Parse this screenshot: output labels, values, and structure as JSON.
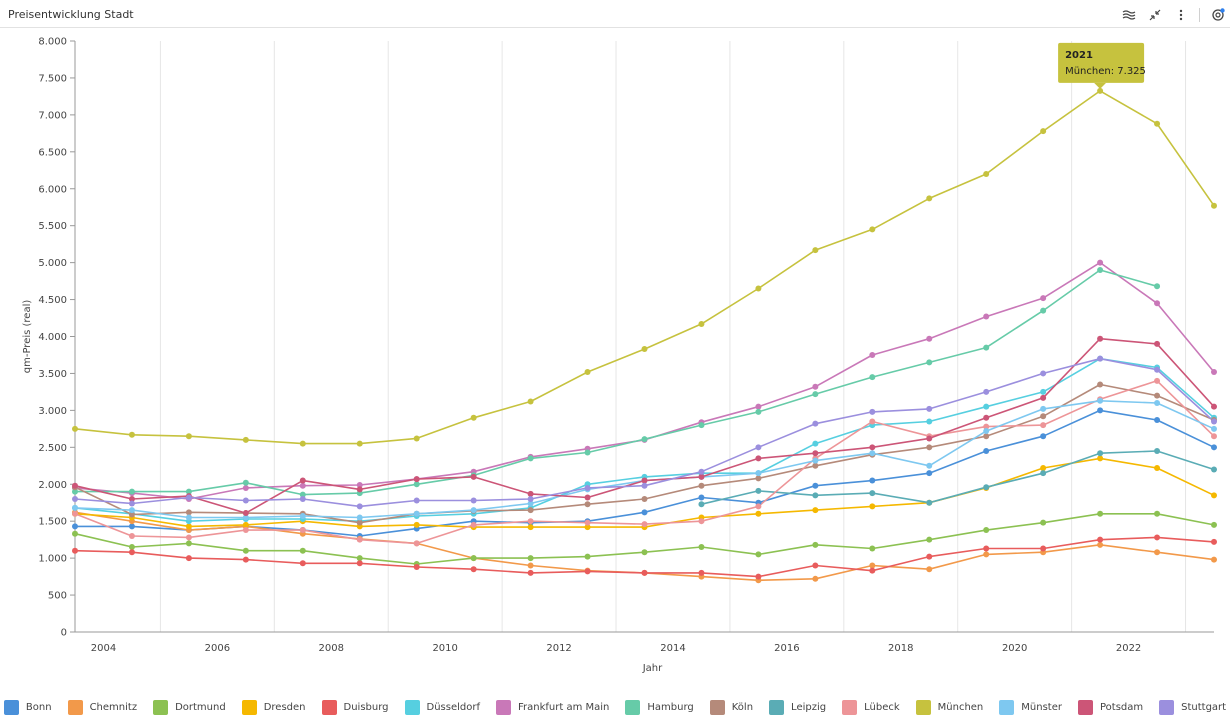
{
  "header": {
    "title": "Preisentwicklung Stadt"
  },
  "toolbar": [
    {
      "name": "chart-type-icon",
      "glyph": "≋"
    },
    {
      "name": "collapse-icon",
      "glyph": "⤡"
    },
    {
      "name": "more-menu-icon",
      "glyph": "⋮"
    },
    {
      "name": "settings-icon",
      "glyph": "◔"
    }
  ],
  "tooltip": {
    "year": "2021",
    "text": "München: 7.325",
    "color": "#c6c23e"
  },
  "chart_data": {
    "type": "line",
    "xlabel": "Jahr",
    "ylabel": "qm-Preis (real)",
    "xlim": [
      2003.5,
      2023.5
    ],
    "ylim": [
      0,
      8000
    ],
    "x_ticks": [
      {
        "value": 2004,
        "label": "2004"
      },
      {
        "value": 2006,
        "label": "2006"
      },
      {
        "value": 2008,
        "label": "2008"
      },
      {
        "value": 2010,
        "label": "2010"
      },
      {
        "value": 2012,
        "label": "2012"
      },
      {
        "value": 2014,
        "label": "2014"
      },
      {
        "value": 2016,
        "label": "2016"
      },
      {
        "value": 2018,
        "label": "2018"
      },
      {
        "value": 2020,
        "label": "2020"
      },
      {
        "value": 2022,
        "label": "2022"
      }
    ],
    "y_ticks": [
      {
        "value": 0,
        "label": "0"
      },
      {
        "value": 500,
        "label": "500"
      },
      {
        "value": 1000,
        "label": "1.000"
      },
      {
        "value": 1500,
        "label": "1.500"
      },
      {
        "value": 2000,
        "label": "2.000"
      },
      {
        "value": 2500,
        "label": "2.500"
      },
      {
        "value": 3000,
        "label": "3.000"
      },
      {
        "value": 3500,
        "label": "3.500"
      },
      {
        "value": 4000,
        "label": "4.000"
      },
      {
        "value": 4500,
        "label": "4.500"
      },
      {
        "value": 5000,
        "label": "5.000"
      },
      {
        "value": 5500,
        "label": "5.500"
      },
      {
        "value": 6000,
        "label": "6.000"
      },
      {
        "value": 6500,
        "label": "6.500"
      },
      {
        "value": 7000,
        "label": "7.000"
      },
      {
        "value": 7500,
        "label": "7.500"
      },
      {
        "value": 8000,
        "label": "8.000"
      }
    ],
    "x": [
      2003.5,
      2004.5,
      2005.5,
      2006.5,
      2007.5,
      2008.5,
      2009.5,
      2010.5,
      2011.5,
      2012.5,
      2013.5,
      2014.5,
      2015.5,
      2016.5,
      2017.5,
      2018.5,
      2019.5,
      2020.5,
      2021.5,
      2022.5,
      2023.5
    ],
    "legend_position": "bottom",
    "series": [
      {
        "name": "Bonn",
        "color": "#4a90d9",
        "values": [
          1430,
          1430,
          1380,
          1430,
          1380,
          1300,
          1400,
          1500,
          1480,
          1500,
          1620,
          1820,
          1750,
          1980,
          2050,
          2150,
          2450,
          2650,
          3000,
          2870,
          2500
        ]
      },
      {
        "name": "Chemnitz",
        "color": "#f2994a",
        "values": [
          1620,
          1500,
          1380,
          1430,
          1330,
          1260,
          1200,
          1000,
          900,
          830,
          800,
          750,
          700,
          720,
          900,
          850,
          1050,
          1080,
          1180,
          1080,
          980
        ]
      },
      {
        "name": "Dortmund",
        "color": "#8cc152",
        "values": [
          1330,
          1150,
          1200,
          1100,
          1100,
          1000,
          920,
          1000,
          1000,
          1020,
          1080,
          1150,
          1050,
          1180,
          1130,
          1250,
          1380,
          1480,
          1600,
          1600,
          1450
        ]
      },
      {
        "name": "Dresden",
        "color": "#f5b800",
        "values": [
          1600,
          1550,
          1430,
          1450,
          1500,
          1430,
          1450,
          1420,
          1420,
          1420,
          1420,
          1550,
          1600,
          1650,
          1700,
          1750,
          1950,
          2220,
          2350,
          2220,
          1850
        ]
      },
      {
        "name": "Duisburg",
        "color": "#e85c5c",
        "values": [
          1100,
          1080,
          1000,
          980,
          930,
          930,
          880,
          850,
          800,
          820,
          800,
          800,
          750,
          900,
          830,
          1020,
          1130,
          1130,
          1250,
          1280,
          1220
        ]
      },
      {
        "name": "Düsseldorf",
        "color": "#56cfe0",
        "values": [
          1680,
          1600,
          1500,
          1530,
          1530,
          1500,
          1570,
          1600,
          1680,
          2000,
          2100,
          2150,
          2150,
          2550,
          2800,
          2850,
          3050,
          3250,
          3700,
          3580,
          2900
        ]
      },
      {
        "name": "Frankfurt am Main",
        "color": "#c978b8",
        "values": [
          1950,
          1880,
          1800,
          1950,
          1980,
          1990,
          2070,
          2170,
          2370,
          2480,
          2600,
          2840,
          3050,
          3320,
          3750,
          3970,
          4270,
          4520,
          5000,
          4450,
          3520
        ]
      },
      {
        "name": "Hamburg",
        "color": "#66cba8",
        "values": [
          1900,
          1900,
          1900,
          2020,
          1860,
          1880,
          2000,
          2120,
          2350,
          2430,
          2610,
          2800,
          2980,
          3220,
          3450,
          3650,
          3850,
          4350,
          4900,
          4680,
          null
        ]
      },
      {
        "name": "Köln",
        "color": "#b58a7a",
        "values": [
          1960,
          1590,
          1620,
          1610,
          1600,
          1480,
          1600,
          1640,
          1650,
          1730,
          1800,
          1980,
          2080,
          2250,
          2400,
          2500,
          2650,
          2920,
          3350,
          3200,
          2870
        ]
      },
      {
        "name": "Leipzig",
        "color": "#5aacb5",
        "values": [
          null,
          null,
          null,
          null,
          null,
          null,
          null,
          null,
          null,
          null,
          null,
          1730,
          1910,
          1850,
          1880,
          1750,
          1960,
          2150,
          2420,
          2450,
          2200
        ]
      },
      {
        "name": "Lübeck",
        "color": "#ed9598",
        "values": [
          1600,
          1300,
          1280,
          1380,
          1380,
          1250,
          1200,
          1450,
          1500,
          1480,
          1460,
          1500,
          1700,
          2350,
          2850,
          2650,
          2780,
          2800,
          3150,
          3400,
          2650
        ]
      },
      {
        "name": "München",
        "color": "#c6c23e",
        "values": [
          2750,
          2670,
          2650,
          2600,
          2550,
          2550,
          2620,
          2900,
          3120,
          3520,
          3830,
          4170,
          4650,
          5170,
          5450,
          5870,
          6200,
          6780,
          7325,
          6880,
          5770
        ]
      },
      {
        "name": "Münster",
        "color": "#7ec8f0",
        "values": [
          1680,
          1650,
          1550,
          1550,
          1570,
          1550,
          1600,
          1650,
          1740,
          1930,
          2050,
          2100,
          2150,
          2320,
          2420,
          2250,
          2720,
          3020,
          3130,
          3100,
          2750
        ]
      },
      {
        "name": "Potsdam",
        "color": "#cc5577",
        "values": [
          1980,
          1800,
          1840,
          1610,
          2050,
          1930,
          2070,
          2100,
          1870,
          1820,
          2050,
          2100,
          2350,
          2420,
          2500,
          2620,
          2900,
          3170,
          3970,
          3900,
          3050
        ]
      },
      {
        "name": "Stuttgart",
        "color": "#9b8fde",
        "values": [
          1800,
          1740,
          1820,
          1780,
          1800,
          1700,
          1780,
          1780,
          1800,
          1950,
          1980,
          2170,
          2500,
          2820,
          2980,
          3020,
          3250,
          3500,
          3700,
          3550,
          2850
        ]
      }
    ]
  }
}
